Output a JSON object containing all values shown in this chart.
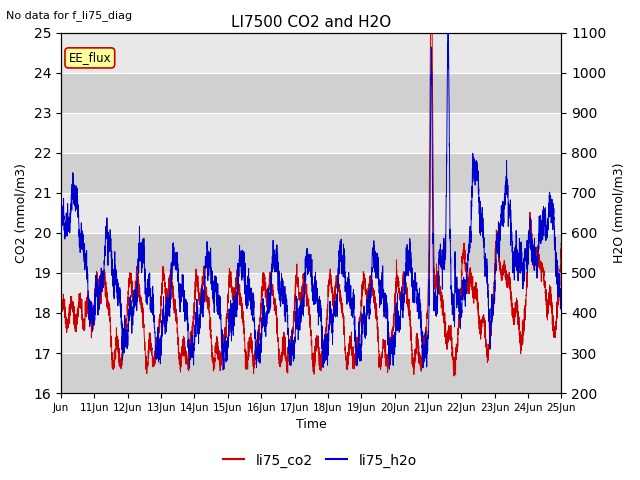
{
  "title": "LI7500 CO2 and H2O",
  "subtitle": "No data for f_li75_diag",
  "xlabel": "Time",
  "ylabel_left": "CO2 (mmol/m3)",
  "ylabel_right": "H2O (mmol/m3)",
  "ylim_left": [
    16.0,
    25.0
  ],
  "ylim_right": [
    200,
    1100
  ],
  "yticks_left": [
    16.0,
    17.0,
    18.0,
    19.0,
    20.0,
    21.0,
    22.0,
    23.0,
    24.0,
    25.0
  ],
  "yticks_right": [
    200,
    300,
    400,
    500,
    600,
    700,
    800,
    900,
    1000,
    1100
  ],
  "color_co2": "#cc0000",
  "color_h2o": "#0000cc",
  "legend_label_co2": "li75_co2",
  "legend_label_h2o": "li75_h2o",
  "annotation_box": "EE_flux",
  "annotation_box_facecolor": "#ffff99",
  "annotation_box_edgecolor": "#cc0000",
  "background_color": "#ffffff",
  "plot_bg_color": "#e8e8e8",
  "plot_bg_bands": [
    {
      "ymin": 16.0,
      "ymax": 17.0,
      "color": "#d0d0d0"
    },
    {
      "ymin": 19.0,
      "ymax": 20.0,
      "color": "#d0d0d0"
    },
    {
      "ymin": 21.0,
      "ymax": 22.0,
      "color": "#d0d0d0"
    },
    {
      "ymin": 23.0,
      "ymax": 24.0,
      "color": "#d0d0d0"
    }
  ],
  "grid_color": "#ffffff",
  "n_days": 15,
  "seed": 42
}
